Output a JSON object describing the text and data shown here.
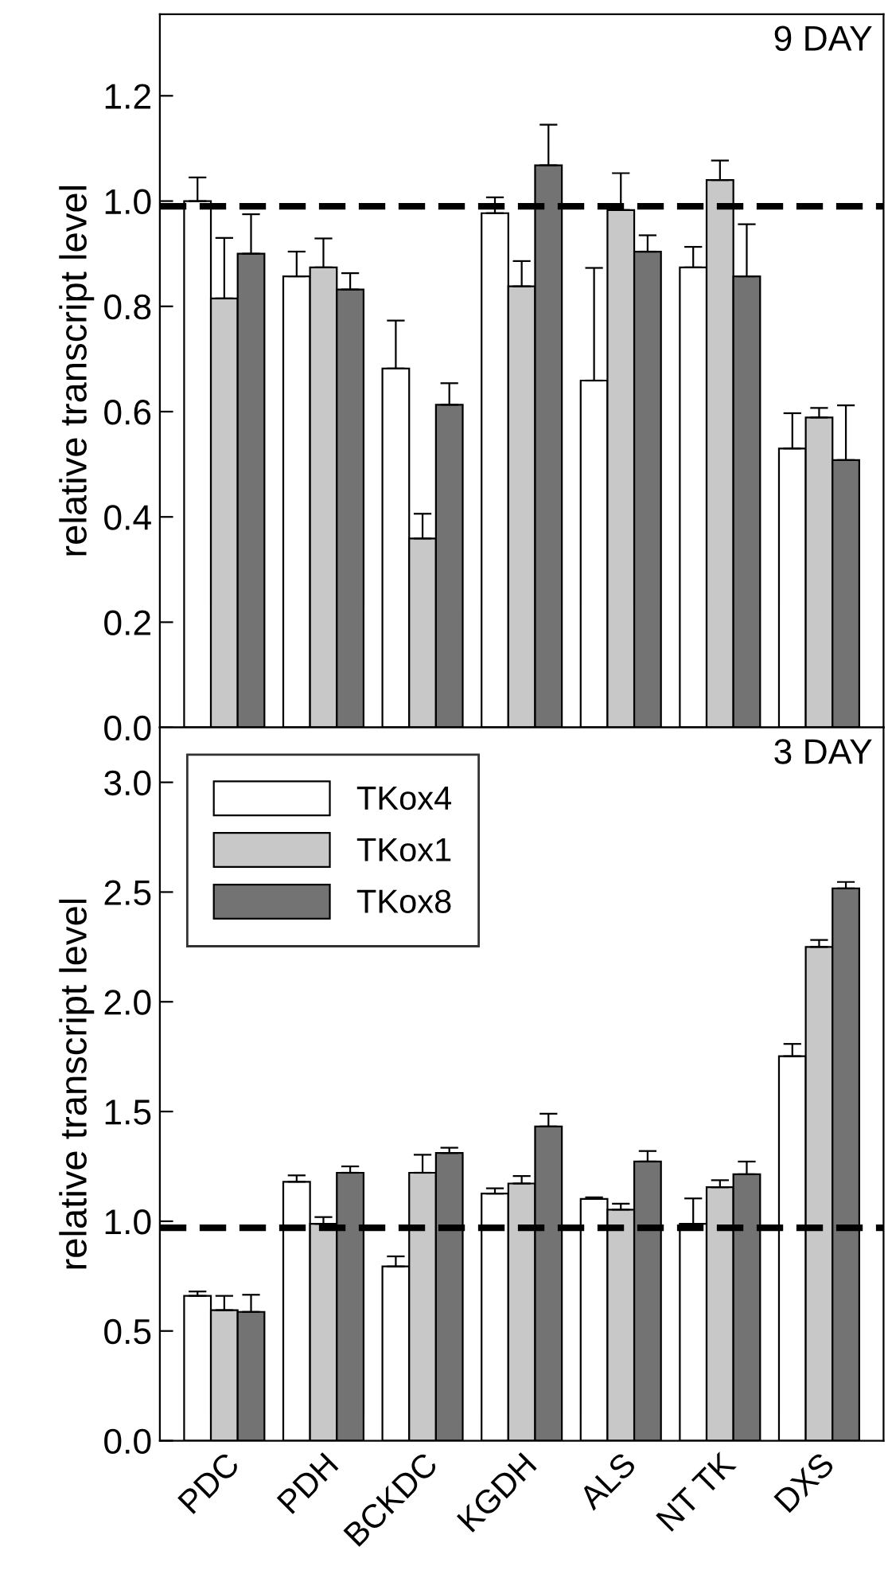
{
  "chart_data": [
    {
      "type": "bar",
      "categories": [
        null,
        null,
        null,
        null,
        null,
        null,
        null
      ],
      "ylabel": "relative transcript level",
      "annotations": [
        "9 DAY"
      ],
      "ylim": [
        0,
        1.355
      ],
      "yticks": [
        {
          "value": 0,
          "label": "0.0"
        },
        0.2,
        0.4,
        0.6,
        0.8,
        {
          "value": 1,
          "label": "1.0"
        },
        1.2
      ],
      "tick_labels": "y",
      "legend": false,
      "ref_lines": [
        {
          "axis": "y",
          "value": 0.99,
          "line_style": "dashed",
          "color": "#000000"
        }
      ],
      "series": [
        {
          "color": "#ffffff",
          "values": [
            1.0,
            0.857,
            0.682,
            0.977,
            0.659,
            0.874,
            0.53
          ],
          "errors": [
            [
              1.0,
              1.045
            ],
            [
              0.857,
              0.904
            ],
            [
              0.682,
              0.773
            ],
            [
              0.977,
              1.007
            ],
            [
              0.659,
              0.873
            ],
            [
              0.874,
              0.913
            ],
            [
              0.53,
              0.597
            ]
          ]
        },
        {
          "color": "#c8c8c8",
          "values": [
            0.815,
            0.874,
            0.359,
            0.838,
            0.983,
            1.04,
            0.589
          ],
          "errors": [
            [
              0.815,
              0.93
            ],
            [
              0.874,
              0.929
            ],
            [
              0.359,
              0.406
            ],
            [
              0.838,
              0.886
            ],
            [
              0.983,
              1.053
            ],
            [
              1.04,
              1.077
            ],
            [
              0.589,
              0.607
            ]
          ]
        },
        {
          "color": "#737373",
          "values": [
            0.9,
            0.832,
            0.613,
            1.068,
            0.904,
            0.857,
            0.508
          ],
          "errors": [
            [
              0.9,
              0.975
            ],
            [
              0.832,
              0.863
            ],
            [
              0.613,
              0.654
            ],
            [
              1.068,
              1.145
            ],
            [
              0.904,
              0.935
            ],
            [
              0.857,
              0.956
            ],
            [
              0.508,
              0.612
            ]
          ]
        }
      ]
    },
    {
      "type": "bar",
      "categories": [
        "PDC",
        "PDH",
        "BCKDC",
        "KGDH",
        "ALS",
        "NT TK",
        "DXS"
      ],
      "ylabel": "relative transcript level",
      "annotations": [
        "3 DAY"
      ],
      "ylim": [
        0,
        3.25
      ],
      "yticks": [
        {
          "value": 0,
          "label": "0.0"
        },
        0.5,
        {
          "value": 1,
          "label": "1.0"
        },
        1.5,
        {
          "value": 2,
          "label": "2.0"
        },
        2.5,
        {
          "value": 3,
          "label": "3.0"
        }
      ],
      "legend": "top left",
      "ref_lines": [
        {
          "axis": "y",
          "value": 0.97,
          "line_style": "dashed",
          "color": "#000000"
        }
      ],
      "series": [
        {
          "name": "TKox4",
          "color": "#ffffff",
          "values": [
            0.66,
            1.18,
            0.794,
            1.126,
            1.102,
            0.988,
            1.752
          ],
          "errors": [
            [
              0.66,
              0.68
            ],
            [
              1.18,
              1.209
            ],
            [
              0.794,
              0.84
            ],
            [
              1.126,
              1.15
            ],
            [
              1.102,
              1.109
            ],
            [
              0.988,
              1.104
            ],
            [
              1.752,
              1.808
            ]
          ]
        },
        {
          "name": "TKox1",
          "color": "#c8c8c8",
          "values": [
            0.595,
            0.988,
            1.221,
            1.172,
            1.053,
            1.155,
            2.25
          ],
          "errors": [
            [
              0.595,
              0.66
            ],
            [
              0.988,
              1.019
            ],
            [
              1.221,
              1.303
            ],
            [
              1.172,
              1.206
            ],
            [
              1.053,
              1.08
            ],
            [
              1.155,
              1.187
            ],
            [
              2.25,
              2.282
            ]
          ]
        },
        {
          "name": "TKox8",
          "color": "#737373",
          "values": [
            0.587,
            1.221,
            1.311,
            1.432,
            1.272,
            1.214,
            2.517
          ],
          "errors": [
            [
              0.587,
              0.665
            ],
            [
              1.221,
              1.25
            ],
            [
              1.311,
              1.335
            ],
            [
              1.432,
              1.49
            ],
            [
              1.272,
              1.32
            ],
            [
              1.214,
              1.272
            ],
            [
              2.517,
              2.546
            ]
          ]
        }
      ]
    }
  ]
}
